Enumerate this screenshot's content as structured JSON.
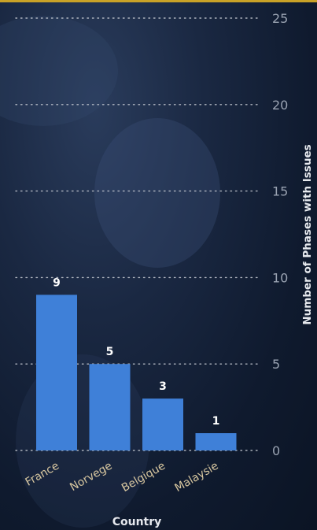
{
  "chart_data": {
    "type": "bar",
    "categories": [
      "France",
      "Norvege",
      "Belgique",
      "Malaysie"
    ],
    "values": [
      9,
      5,
      3,
      1
    ],
    "data_labels": [
      "9",
      "5",
      "3",
      "1"
    ],
    "title": "",
    "xlabel": "Country",
    "ylabel": "Number of Phases with Issues",
    "ylim": [
      0,
      25
    ],
    "yticks": [
      0,
      5,
      10,
      15,
      20,
      25
    ],
    "ytick_labels": [
      "0",
      "5",
      "10",
      "15",
      "20",
      "25"
    ],
    "y_axis_side": "right",
    "grid": true,
    "legend": "none"
  },
  "colors": {
    "bar": "#3f80d8",
    "gridline": "#c8ccd4",
    "tick_label": "#9aa3b2",
    "category_label": "#d8c7a0",
    "axis_title": "#e6e9ee",
    "data_label": "#ffffff",
    "top_border": "#c9a227"
  }
}
